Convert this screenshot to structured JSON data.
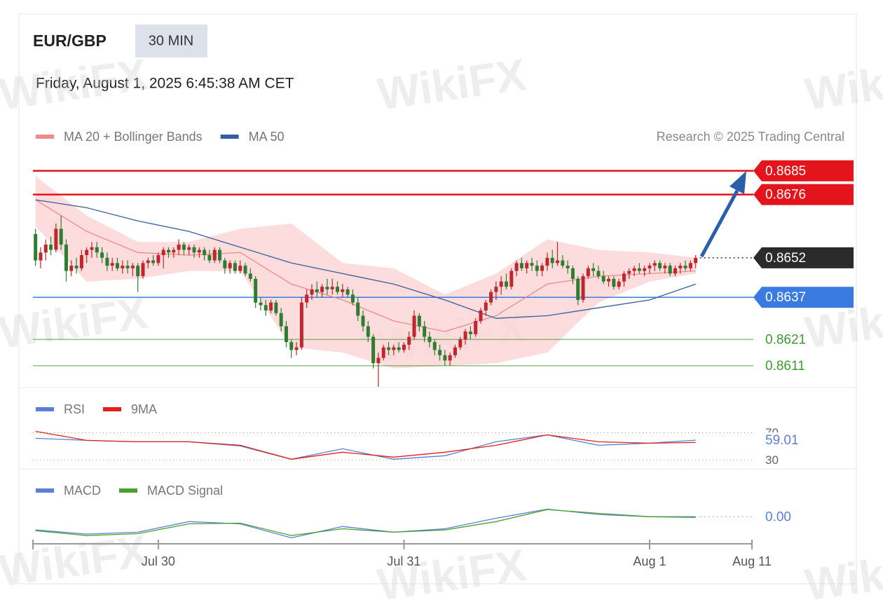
{
  "watermark": "WikiFX",
  "chart_data": [
    {
      "type": "candlestick",
      "title": "EUR/GBP",
      "timeframe": "30 MIN",
      "subtitle": "Friday, August 1, 2025 6:45:38 AM CET",
      "credit": "Research © 2025 Trading Central",
      "xlim": [
        -0.5,
        140
      ],
      "xticks": [
        {
          "value": 24,
          "label": "Jul 30"
        },
        {
          "value": 72,
          "label": "Jul 31"
        },
        {
          "value": 120,
          "label": "Aug 1"
        },
        {
          "value": 140,
          "label": "Aug 11"
        }
      ],
      "ylim": [
        0.8603,
        0.869
      ],
      "up_color": "#c0262d",
      "down_color": "#2e7d32",
      "candles": [
        [
          0.8661,
          0.8663,
          0.8649,
          0.8651
        ],
        [
          0.8651,
          0.8656,
          0.8648,
          0.8654
        ],
        [
          0.8654,
          0.8659,
          0.8651,
          0.8657
        ],
        [
          0.8657,
          0.866,
          0.8653,
          0.8655
        ],
        [
          0.8655,
          0.8665,
          0.8654,
          0.8663
        ],
        [
          0.8663,
          0.8668,
          0.8655,
          0.8657
        ],
        [
          0.8657,
          0.8659,
          0.8643,
          0.8647
        ],
        [
          0.8647,
          0.8651,
          0.8645,
          0.8649
        ],
        [
          0.8649,
          0.8652,
          0.8646,
          0.8648
        ],
        [
          0.8648,
          0.8655,
          0.8647,
          0.8653
        ],
        [
          0.8653,
          0.8656,
          0.865,
          0.8655
        ],
        [
          0.8655,
          0.8658,
          0.8652,
          0.8656
        ],
        [
          0.8656,
          0.8658,
          0.8652,
          0.8654
        ],
        [
          0.8654,
          0.8656,
          0.865,
          0.8652
        ],
        [
          0.8652,
          0.8654,
          0.8647,
          0.8649
        ],
        [
          0.8649,
          0.8652,
          0.8647,
          0.865
        ],
        [
          0.865,
          0.8652,
          0.8647,
          0.8648
        ],
        [
          0.8648,
          0.8651,
          0.8646,
          0.8649
        ],
        [
          0.8649,
          0.8651,
          0.8646,
          0.8648
        ],
        [
          0.8648,
          0.865,
          0.8645,
          0.8649
        ],
        [
          0.8649,
          0.865,
          0.8639,
          0.8645
        ],
        [
          0.8645,
          0.8651,
          0.8644,
          0.865
        ],
        [
          0.865,
          0.8652,
          0.8648,
          0.8651
        ],
        [
          0.8651,
          0.8653,
          0.8649,
          0.865
        ],
        [
          0.865,
          0.8654,
          0.8649,
          0.8653
        ],
        [
          0.8653,
          0.8656,
          0.8648,
          0.8655
        ],
        [
          0.8655,
          0.8656,
          0.8652,
          0.8654
        ],
        [
          0.8654,
          0.8656,
          0.8652,
          0.8655
        ],
        [
          0.8655,
          0.8659,
          0.8653,
          0.8657
        ],
        [
          0.8657,
          0.8658,
          0.8653,
          0.8655
        ],
        [
          0.8655,
          0.8657,
          0.8653,
          0.8656
        ],
        [
          0.8656,
          0.8657,
          0.8652,
          0.8654
        ],
        [
          0.8654,
          0.8656,
          0.8652,
          0.8655
        ],
        [
          0.8655,
          0.8656,
          0.8651,
          0.8653
        ],
        [
          0.8653,
          0.8655,
          0.865,
          0.8651
        ],
        [
          0.8651,
          0.8656,
          0.865,
          0.8655
        ],
        [
          0.8655,
          0.8656,
          0.865,
          0.8651
        ],
        [
          0.8651,
          0.8652,
          0.8646,
          0.8648
        ],
        [
          0.8648,
          0.8651,
          0.8646,
          0.865
        ],
        [
          0.865,
          0.8651,
          0.8646,
          0.8647
        ],
        [
          0.8647,
          0.8651,
          0.8646,
          0.8649
        ],
        [
          0.8649,
          0.865,
          0.8645,
          0.8646
        ],
        [
          0.8646,
          0.8648,
          0.8643,
          0.8644
        ],
        [
          0.8644,
          0.8645,
          0.8633,
          0.8635
        ],
        [
          0.8635,
          0.8637,
          0.8632,
          0.8634
        ],
        [
          0.8634,
          0.8636,
          0.863,
          0.8632
        ],
        [
          0.8632,
          0.8636,
          0.8631,
          0.8635
        ],
        [
          0.8635,
          0.8636,
          0.863,
          0.8631
        ],
        [
          0.8631,
          0.8633,
          0.8624,
          0.8626
        ],
        [
          0.8626,
          0.8628,
          0.8618,
          0.862
        ],
        [
          0.862,
          0.8621,
          0.8614,
          0.8617
        ],
        [
          0.8617,
          0.862,
          0.8615,
          0.8618
        ],
        [
          0.8618,
          0.8637,
          0.8617,
          0.8635
        ],
        [
          0.8635,
          0.864,
          0.8633,
          0.8638
        ],
        [
          0.8638,
          0.8642,
          0.8636,
          0.864
        ],
        [
          0.864,
          0.8643,
          0.8637,
          0.8639
        ],
        [
          0.8639,
          0.8642,
          0.8637,
          0.8641
        ],
        [
          0.8641,
          0.8644,
          0.8638,
          0.864
        ],
        [
          0.864,
          0.8644,
          0.8638,
          0.8641
        ],
        [
          0.8641,
          0.8643,
          0.8638,
          0.8639
        ],
        [
          0.8639,
          0.8642,
          0.8637,
          0.864
        ],
        [
          0.864,
          0.8641,
          0.8637,
          0.8638
        ],
        [
          0.8638,
          0.864,
          0.8634,
          0.8635
        ],
        [
          0.8635,
          0.8637,
          0.8628,
          0.863
        ],
        [
          0.863,
          0.8632,
          0.8624,
          0.8626
        ],
        [
          0.8626,
          0.8628,
          0.862,
          0.8622
        ],
        [
          0.8622,
          0.8623,
          0.861,
          0.8612
        ],
        [
          0.8612,
          0.8616,
          0.8603,
          0.8614
        ],
        [
          0.8614,
          0.8619,
          0.8613,
          0.8618
        ],
        [
          0.8618,
          0.862,
          0.8615,
          0.8617
        ],
        [
          0.8617,
          0.8619,
          0.8615,
          0.8618
        ],
        [
          0.8618,
          0.862,
          0.8616,
          0.8617
        ],
        [
          0.8617,
          0.862,
          0.8616,
          0.8619
        ],
        [
          0.8619,
          0.8624,
          0.8617,
          0.8622
        ],
        [
          0.8622,
          0.8632,
          0.8621,
          0.863
        ],
        [
          0.863,
          0.8631,
          0.8624,
          0.8626
        ],
        [
          0.8626,
          0.8628,
          0.862,
          0.8622
        ],
        [
          0.8622,
          0.8624,
          0.8618,
          0.862
        ],
        [
          0.862,
          0.8621,
          0.8615,
          0.8617
        ],
        [
          0.8617,
          0.8619,
          0.8613,
          0.8615
        ],
        [
          0.8615,
          0.8617,
          0.8611,
          0.8613
        ],
        [
          0.8613,
          0.8616,
          0.8611,
          0.8615
        ],
        [
          0.8615,
          0.8619,
          0.8614,
          0.8618
        ],
        [
          0.8618,
          0.8622,
          0.8617,
          0.8621
        ],
        [
          0.8621,
          0.8625,
          0.8619,
          0.8624
        ],
        [
          0.8624,
          0.8626,
          0.8621,
          0.8623
        ],
        [
          0.8623,
          0.8629,
          0.8622,
          0.8628
        ],
        [
          0.8628,
          0.8633,
          0.8627,
          0.8632
        ],
        [
          0.8632,
          0.8636,
          0.863,
          0.8635
        ],
        [
          0.8635,
          0.864,
          0.8634,
          0.8639
        ],
        [
          0.8639,
          0.8643,
          0.8636,
          0.8641
        ],
        [
          0.8641,
          0.8645,
          0.8638,
          0.8643
        ],
        [
          0.8643,
          0.8646,
          0.864,
          0.8641
        ],
        [
          0.8641,
          0.8648,
          0.864,
          0.8647
        ],
        [
          0.8647,
          0.8651,
          0.8645,
          0.865
        ],
        [
          0.865,
          0.8652,
          0.8647,
          0.8648
        ],
        [
          0.8648,
          0.8651,
          0.8646,
          0.865
        ],
        [
          0.865,
          0.8652,
          0.8647,
          0.8649
        ],
        [
          0.8649,
          0.8651,
          0.8645,
          0.8647
        ],
        [
          0.8647,
          0.865,
          0.8645,
          0.8649
        ],
        [
          0.8649,
          0.8654,
          0.8647,
          0.8652
        ],
        [
          0.8652,
          0.8655,
          0.8648,
          0.865
        ],
        [
          0.865,
          0.8658,
          0.8649,
          0.8651
        ],
        [
          0.8651,
          0.8653,
          0.8648,
          0.8649
        ],
        [
          0.8649,
          0.8651,
          0.8646,
          0.8648
        ],
        [
          0.8648,
          0.8649,
          0.8642,
          0.8644
        ],
        [
          0.8644,
          0.8645,
          0.8634,
          0.8636
        ],
        [
          0.8636,
          0.8646,
          0.8635,
          0.8645
        ],
        [
          0.8645,
          0.8649,
          0.8644,
          0.8648
        ],
        [
          0.8648,
          0.865,
          0.8645,
          0.8647
        ],
        [
          0.8647,
          0.8649,
          0.8644,
          0.8645
        ],
        [
          0.8645,
          0.8647,
          0.8642,
          0.8643
        ],
        [
          0.8643,
          0.8645,
          0.8641,
          0.8644
        ],
        [
          0.8644,
          0.8645,
          0.864,
          0.8641
        ],
        [
          0.8641,
          0.8644,
          0.864,
          0.8643
        ],
        [
          0.8643,
          0.8647,
          0.8641,
          0.8646
        ],
        [
          0.8646,
          0.8648,
          0.8644,
          0.8647
        ],
        [
          0.8647,
          0.8649,
          0.8645,
          0.8648
        ],
        [
          0.8648,
          0.865,
          0.8646,
          0.8647
        ],
        [
          0.8647,
          0.8649,
          0.8645,
          0.8648
        ],
        [
          0.8648,
          0.865,
          0.8646,
          0.8649
        ],
        [
          0.8649,
          0.8651,
          0.8647,
          0.865
        ],
        [
          0.865,
          0.8651,
          0.8647,
          0.8648
        ],
        [
          0.8648,
          0.865,
          0.8646,
          0.8649
        ],
        [
          0.8649,
          0.865,
          0.8645,
          0.8646
        ],
        [
          0.8646,
          0.8649,
          0.8645,
          0.8648
        ],
        [
          0.8648,
          0.865,
          0.8646,
          0.8649
        ],
        [
          0.8649,
          0.8651,
          0.8647,
          0.8648
        ],
        [
          0.8648,
          0.8651,
          0.8647,
          0.865
        ],
        [
          0.865,
          0.8653,
          0.8648,
          0.8652
        ]
      ],
      "series": [
        {
          "name": "MA 20 + Bollinger Bands",
          "color": "#f08a8a",
          "band_color": "#fbd3d3",
          "x": [
            0,
            10,
            20,
            30,
            40,
            50,
            60,
            70,
            80,
            90,
            100,
            110,
            120,
            129
          ],
          "values": [
            0.8674,
            0.8662,
            0.8654,
            0.8653,
            0.8654,
            0.8642,
            0.8636,
            0.8628,
            0.8624,
            0.863,
            0.8642,
            0.8645,
            0.8646,
            0.8647
          ],
          "upper": [
            0.8683,
            0.8668,
            0.8658,
            0.8658,
            0.8663,
            0.8665,
            0.865,
            0.8648,
            0.8638,
            0.8646,
            0.8659,
            0.8655,
            0.8654,
            0.8652
          ],
          "lower": [
            0.8664,
            0.8643,
            0.8644,
            0.8647,
            0.8647,
            0.8618,
            0.8616,
            0.861,
            0.8611,
            0.8612,
            0.8616,
            0.8635,
            0.8643,
            0.8646
          ]
        },
        {
          "name": "MA 50",
          "color": "#3a5d9c",
          "x": [
            0,
            10,
            20,
            30,
            40,
            50,
            60,
            70,
            80,
            90,
            100,
            110,
            120,
            129
          ],
          "values": [
            0.8674,
            0.8671,
            0.8666,
            0.8662,
            0.8656,
            0.865,
            0.8646,
            0.8642,
            0.8636,
            0.8629,
            0.863,
            0.8633,
            0.8636,
            0.8642
          ]
        }
      ],
      "levels": [
        {
          "value": 0.8685,
          "color": "#e3141b",
          "style": "tag",
          "line": "solid"
        },
        {
          "value": 0.8676,
          "color": "#e3141b",
          "style": "tag",
          "line": "solid"
        },
        {
          "value": 0.8652,
          "color": "#2b2b2b",
          "style": "tag",
          "line": "dotted"
        },
        {
          "value": 0.8637,
          "color": "#3b7be0",
          "style": "tag",
          "line": "solid"
        },
        {
          "value": 0.8621,
          "color": "#3c9a2e",
          "style": "text",
          "line": "solid"
        },
        {
          "value": 0.8611,
          "color": "#3c9a2e",
          "style": "text",
          "line": "solid"
        }
      ]
    },
    {
      "type": "line",
      "ylim": [
        20,
        88
      ],
      "yticks": [
        30,
        70
      ],
      "last_value_label": "59.01",
      "series": [
        {
          "name": "RSI",
          "color": "#5b7fd6",
          "x": [
            0,
            10,
            20,
            30,
            40,
            50,
            60,
            70,
            80,
            90,
            100,
            110,
            120,
            129
          ],
          "values": [
            61.8,
            58.7,
            56.7,
            56.7,
            50.5,
            31,
            46.4,
            31,
            36.2,
            56.7,
            66.9,
            51.5,
            54.6,
            59.01
          ]
        },
        {
          "name": "9MA",
          "color": "#e0201a",
          "x": [
            0,
            10,
            20,
            30,
            40,
            50,
            60,
            70,
            80,
            90,
            100,
            110,
            120,
            129
          ],
          "values": [
            72,
            58.7,
            56.7,
            56.7,
            51.5,
            31,
            41.3,
            34.1,
            41.3,
            51.5,
            66.9,
            56.7,
            54.6,
            55.6
          ]
        }
      ]
    },
    {
      "type": "line",
      "ylim": [
        -0.0007,
        0.0006
      ],
      "last_value_label": "0.00",
      "series": [
        {
          "name": "MACD",
          "color": "#5b7fd6",
          "x": [
            0,
            10,
            20,
            30,
            40,
            50,
            60,
            70,
            80,
            90,
            100,
            110,
            120,
            129
          ],
          "values": [
            -0.00035,
            -0.00046,
            -0.00041,
            -0.00013,
            -0.00019,
            -0.00056,
            -0.00026,
            -0.00041,
            -0.00032,
            -4e-05,
            0.0002,
            6e-05,
            0,
            0
          ]
        },
        {
          "name": "MACD Signal",
          "color": "#4aa02c",
          "x": [
            0,
            10,
            20,
            30,
            40,
            50,
            60,
            70,
            80,
            90,
            100,
            110,
            120,
            129
          ],
          "values": [
            -0.00037,
            -0.0005,
            -0.00045,
            -0.00019,
            -0.00017,
            -0.0005,
            -0.00032,
            -0.00041,
            -0.00035,
            -0.00013,
            0.00019,
            9e-05,
            0,
            -2e-05
          ]
        }
      ]
    }
  ]
}
